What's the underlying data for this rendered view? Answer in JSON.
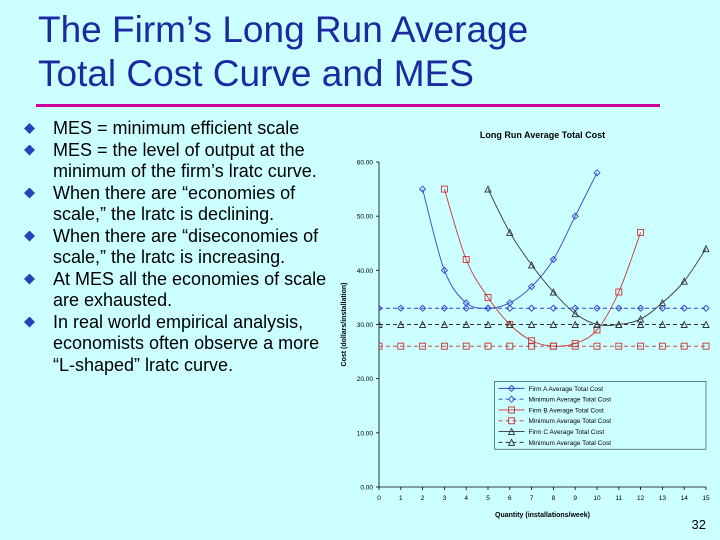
{
  "slide": {
    "title_line1": "The Firm’s Long Run Average",
    "title_line2": "Total Cost Curve and MES",
    "bullets": [
      "MES = minimum efficient scale",
      "MES = the level of output at the minimum of the firm’s lratc curve.",
      "When there are “economies of scale,” the lratc is declining.",
      "When there are “diseconomies of scale,” the lratc is increasing.",
      "At MES all the economies of scale are exhausted.",
      "In real world empirical analysis, economists often observe a more “L-shaped” lratc curve."
    ],
    "page_number": "32"
  },
  "chart_data": {
    "type": "line",
    "title": "Long Run Average Total Cost",
    "xlabel": "Quantity (installations/week)",
    "ylabel": "Cost (dollars/installation)",
    "xlim": [
      0,
      15
    ],
    "ylim": [
      0,
      60
    ],
    "x_ticks": [
      "0",
      "1",
      "2",
      "3",
      "4",
      "5",
      "6",
      "7",
      "8",
      "9",
      "10",
      "11",
      "12",
      "13",
      "14",
      "15"
    ],
    "y_ticks": [
      "0.00",
      "10.00",
      "20.00",
      "30.00",
      "40.00",
      "50.00",
      "60.00"
    ],
    "grid": false,
    "legend_position": "bottom-right",
    "series": [
      {
        "name": "Firm A Average Total Cost",
        "color": "#3344cc",
        "marker": "diamond",
        "dash": false,
        "x": [
          2,
          3,
          4,
          5,
          6,
          7,
          8,
          9,
          10
        ],
        "y": [
          55,
          40,
          34,
          33,
          34,
          37,
          42,
          50,
          58
        ]
      },
      {
        "name": "Minimum Average Total Cost",
        "color": "#3344cc",
        "marker": "diamond",
        "dash": true,
        "x": [
          0,
          1,
          2,
          3,
          4,
          5,
          6,
          7,
          8,
          9,
          10,
          11,
          12,
          13,
          14,
          15
        ],
        "y": [
          33,
          33,
          33,
          33,
          33,
          33,
          33,
          33,
          33,
          33,
          33,
          33,
          33,
          33,
          33,
          33
        ]
      },
      {
        "name": "Firm B Average Total Cost",
        "color": "#cc3333",
        "marker": "square",
        "dash": false,
        "x": [
          3,
          4,
          5,
          6,
          7,
          8,
          9,
          10,
          11,
          12
        ],
        "y": [
          55,
          42,
          35,
          30,
          27,
          26,
          26.5,
          29,
          36,
          47
        ]
      },
      {
        "name": "Minimum Average Total Cost",
        "color": "#cc3333",
        "marker": "square",
        "dash": true,
        "x": [
          0,
          1,
          2,
          3,
          4,
          5,
          6,
          7,
          8,
          9,
          10,
          11,
          12,
          13,
          14,
          15
        ],
        "y": [
          26,
          26,
          26,
          26,
          26,
          26,
          26,
          26,
          26,
          26,
          26,
          26,
          26,
          26,
          26,
          26
        ]
      },
      {
        "name": "Firm C Average Total Cost",
        "color": "#333333",
        "marker": "triangle",
        "dash": false,
        "x": [
          5,
          6,
          7,
          8,
          9,
          10,
          11,
          12,
          13,
          14,
          15
        ],
        "y": [
          55,
          47,
          41,
          36,
          32,
          30,
          30,
          31,
          34,
          38,
          44
        ]
      },
      {
        "name": "Minimum Average Total Cost",
        "color": "#333333",
        "marker": "triangle",
        "dash": true,
        "x": [
          0,
          1,
          2,
          3,
          4,
          5,
          6,
          7,
          8,
          9,
          10,
          11,
          12,
          13,
          14,
          15
        ],
        "y": [
          30,
          30,
          30,
          30,
          30,
          30,
          30,
          30,
          30,
          30,
          30,
          30,
          30,
          30,
          30,
          30
        ]
      }
    ]
  }
}
